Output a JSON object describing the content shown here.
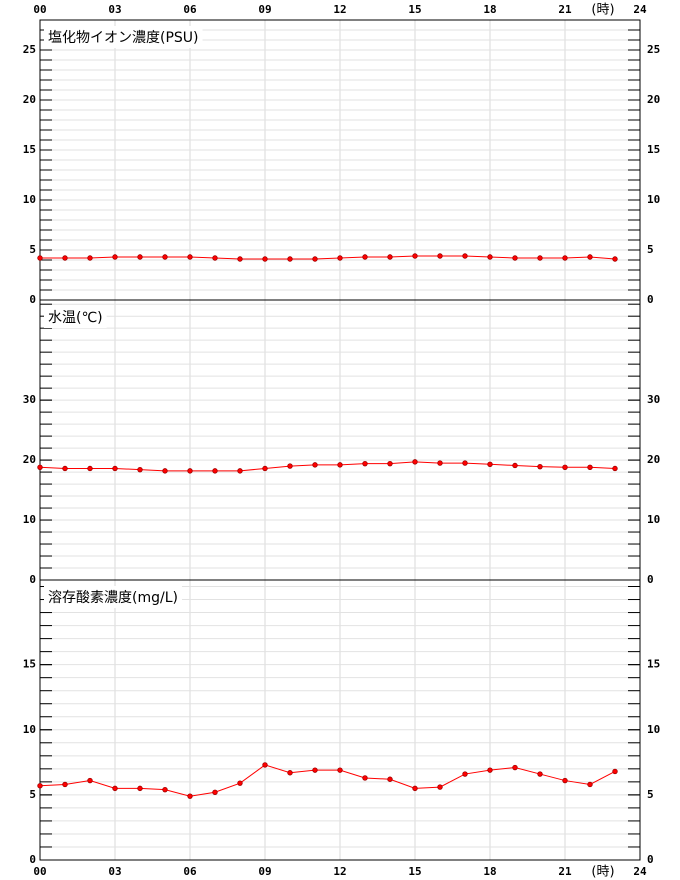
{
  "x_axis": {
    "xlim": [
      0,
      24
    ],
    "xticks": [
      {
        "value": 0,
        "label": "00"
      },
      {
        "value": 3,
        "label": "03"
      },
      {
        "value": 6,
        "label": "06"
      },
      {
        "value": 9,
        "label": "09"
      },
      12,
      15,
      18,
      21,
      24
    ],
    "unit": "(時)"
  },
  "chart_data": [
    {
      "type": "line",
      "title": "塩化物イオン濃度(PSU)",
      "color": "#ff0000",
      "ylim": [
        0,
        28
      ],
      "yticks": [
        0,
        5,
        10,
        15,
        20,
        25
      ],
      "minor_step": 1,
      "grid": true,
      "x": [
        0,
        1,
        2,
        3,
        4,
        5,
        6,
        7,
        8,
        9,
        10,
        11,
        12,
        13,
        14,
        15,
        16,
        17,
        18,
        19,
        20,
        21,
        22,
        23
      ],
      "values": [
        4.2,
        4.2,
        4.2,
        4.3,
        4.3,
        4.3,
        4.3,
        4.2,
        4.1,
        4.1,
        4.1,
        4.1,
        4.2,
        4.3,
        4.3,
        4.4,
        4.4,
        4.4,
        4.3,
        4.2,
        4.2,
        4.2,
        4.3,
        4.1
      ]
    },
    {
      "type": "line",
      "title": "水温(℃)",
      "color": "#ff0000",
      "ylim": [
        0,
        46.7
      ],
      "yticks": [
        0,
        10,
        20,
        30
      ],
      "minor_step": 2,
      "grid": true,
      "x": [
        0,
        1,
        2,
        3,
        4,
        5,
        6,
        7,
        8,
        9,
        10,
        11,
        12,
        13,
        14,
        15,
        16,
        17,
        18,
        19,
        20,
        21,
        22,
        23
      ],
      "values": [
        18.8,
        18.6,
        18.6,
        18.6,
        18.4,
        18.2,
        18.2,
        18.2,
        18.2,
        18.6,
        19.0,
        19.2,
        19.2,
        19.4,
        19.4,
        19.7,
        19.5,
        19.5,
        19.3,
        19.1,
        18.9,
        18.8,
        18.8,
        18.6
      ]
    },
    {
      "type": "line",
      "title": "溶存酸素濃度(mg/L)",
      "color": "#ff0000",
      "ylim": [
        0,
        21.5
      ],
      "yticks": [
        0,
        5,
        10,
        15
      ],
      "minor_step": 1,
      "grid": true,
      "x": [
        0,
        1,
        2,
        3,
        4,
        5,
        6,
        7,
        8,
        9,
        10,
        11,
        12,
        13,
        14,
        15,
        16,
        17,
        18,
        19,
        20,
        21,
        22,
        23
      ],
      "values": [
        5.7,
        5.8,
        6.1,
        5.5,
        5.5,
        5.4,
        4.9,
        5.2,
        5.9,
        7.3,
        6.7,
        6.9,
        6.9,
        6.3,
        6.2,
        5.5,
        5.6,
        6.6,
        6.9,
        7.1,
        6.6,
        6.1,
        5.8,
        6.8
      ]
    }
  ]
}
